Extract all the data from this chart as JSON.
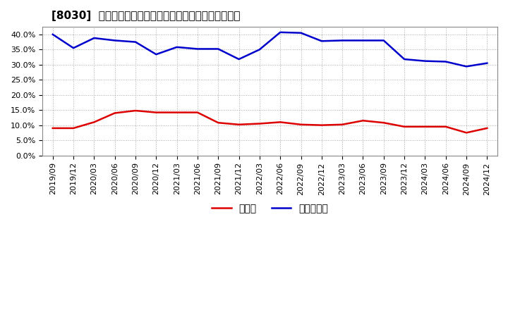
{
  "title": "[8030]  現預金、有利子負債の総資産に対する比率の推移",
  "xlabel": "",
  "ylabel": "",
  "ylim": [
    0.0,
    0.425
  ],
  "yticks": [
    0.0,
    0.05,
    0.1,
    0.15,
    0.2,
    0.25,
    0.3,
    0.35,
    0.4
  ],
  "background_color": "#ffffff",
  "plot_bg_color": "#ffffff",
  "grid_color": "#aaaaaa",
  "dates": [
    "2019/09",
    "2019/12",
    "2020/03",
    "2020/06",
    "2020/09",
    "2020/12",
    "2021/03",
    "2021/06",
    "2021/09",
    "2021/12",
    "2022/03",
    "2022/06",
    "2022/09",
    "2022/12",
    "2023/03",
    "2023/06",
    "2023/09",
    "2023/12",
    "2024/03",
    "2024/06",
    "2024/09",
    "2024/12"
  ],
  "cash_ratio": [
    0.09,
    0.09,
    0.11,
    0.14,
    0.148,
    0.142,
    0.142,
    0.142,
    0.108,
    0.102,
    0.105,
    0.11,
    0.102,
    0.1,
    0.102,
    0.115,
    0.108,
    0.095,
    0.095,
    0.095,
    0.075,
    0.09
  ],
  "debt_ratio": [
    0.4,
    0.355,
    0.388,
    0.38,
    0.375,
    0.334,
    0.358,
    0.352,
    0.352,
    0.318,
    0.35,
    0.407,
    0.405,
    0.378,
    0.38,
    0.38,
    0.38,
    0.318,
    0.312,
    0.31,
    0.294,
    0.305
  ],
  "cash_color": "#dd0000",
  "debt_color": "#0000cc",
  "legend_cash": "現預金",
  "legend_debt": "有利子負債",
  "title_fontsize": 11,
  "tick_fontsize": 8,
  "legend_fontsize": 10,
  "linewidth": 1.8
}
